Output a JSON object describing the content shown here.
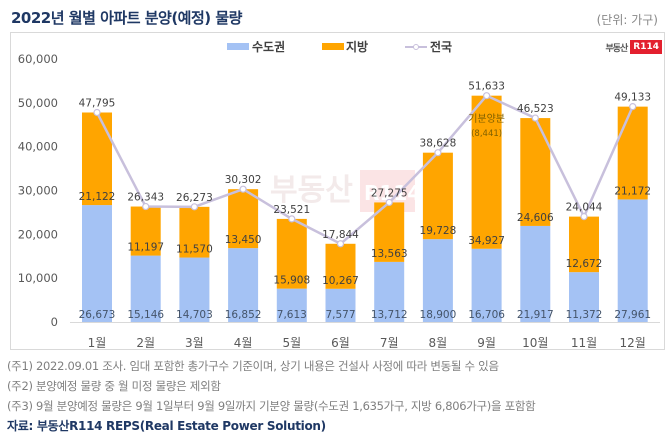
{
  "header": {
    "title": "2022년 월별 아파트 분양(예정) 물량",
    "unit": "(단위: 가구)"
  },
  "logo": {
    "text": "부동산",
    "badge": "R114"
  },
  "watermark": {
    "text": "부동산",
    "badge": "R114"
  },
  "colors": {
    "capital": "#a4c2f4",
    "local": "#ffa500",
    "national_line": "#c8c0dc",
    "axis_text": "#595959",
    "label_dark": "#404040"
  },
  "chart_data": {
    "type": "bar",
    "stacked": true,
    "title": "2022년 월별 아파트 분양(예정) 물량",
    "xlabel": "",
    "ylabel": "",
    "unit": "가구",
    "ylim": [
      0,
      60000
    ],
    "yticks": [
      0,
      10000,
      20000,
      30000,
      40000,
      50000,
      60000
    ],
    "ytick_labels": [
      "0",
      "10,000",
      "20,000",
      "30,000",
      "40,000",
      "50,000",
      "60,000"
    ],
    "grid": false,
    "legend": "top-center",
    "categories": [
      "1월",
      "2월",
      "3월",
      "4월",
      "5월",
      "6월",
      "7월",
      "8월",
      "9월",
      "10월",
      "11월",
      "12월"
    ],
    "series": [
      {
        "name": "수도권",
        "type": "bar",
        "values": [
          26673,
          15146,
          14703,
          16852,
          7613,
          7577,
          13712,
          18900,
          16706,
          21917,
          11372,
          27961
        ],
        "labels": [
          "26,673",
          "15,146",
          "14,703",
          "16,852",
          "7,613",
          "7,577",
          "13,712",
          "18,900",
          "16,706",
          "21,917",
          "11,372",
          "27,961"
        ]
      },
      {
        "name": "지방",
        "type": "bar",
        "values": [
          21122,
          11197,
          11570,
          13450,
          15908,
          10267,
          13563,
          19728,
          34927,
          24606,
          12672,
          21172
        ],
        "labels": [
          "21,122",
          "11,197",
          "11,570",
          "13,450",
          "15,908",
          "10,267",
          "13,563",
          "19,728",
          "34,927",
          "24,606",
          "12,672",
          "21,172"
        ]
      },
      {
        "name": "전국",
        "type": "line",
        "values": [
          47795,
          26343,
          26273,
          30302,
          23521,
          17844,
          27275,
          38628,
          51633,
          46523,
          24044,
          49133
        ],
        "labels": [
          "47,795",
          "26,343",
          "26,273",
          "30,302",
          "23,521",
          "17,844",
          "27,275",
          "38,628",
          "51,633",
          "46,523",
          "24,044",
          "49,133"
        ]
      }
    ],
    "annotations": [
      {
        "category": "9월",
        "text": "기분양분",
        "subtext": "(8,441)"
      }
    ]
  },
  "notes": [
    "(주1) 2022.09.01 조사. 임대 포함한 총가구수 기준이며, 상기 내용은 건설사 사정에 따라 변동될 수 있음",
    "(주2) 분양예정 물량 중 월 미정 물량은 제외함",
    "(주3) 9월 분양예정 물량은 9월 1일부터 9월 9일까지 기분양 물량(수도권 1,635가구, 지방 6,806가구)을 포함함"
  ],
  "source": "자료: 부동산R114 REPS(Real Estate Power Solution)"
}
